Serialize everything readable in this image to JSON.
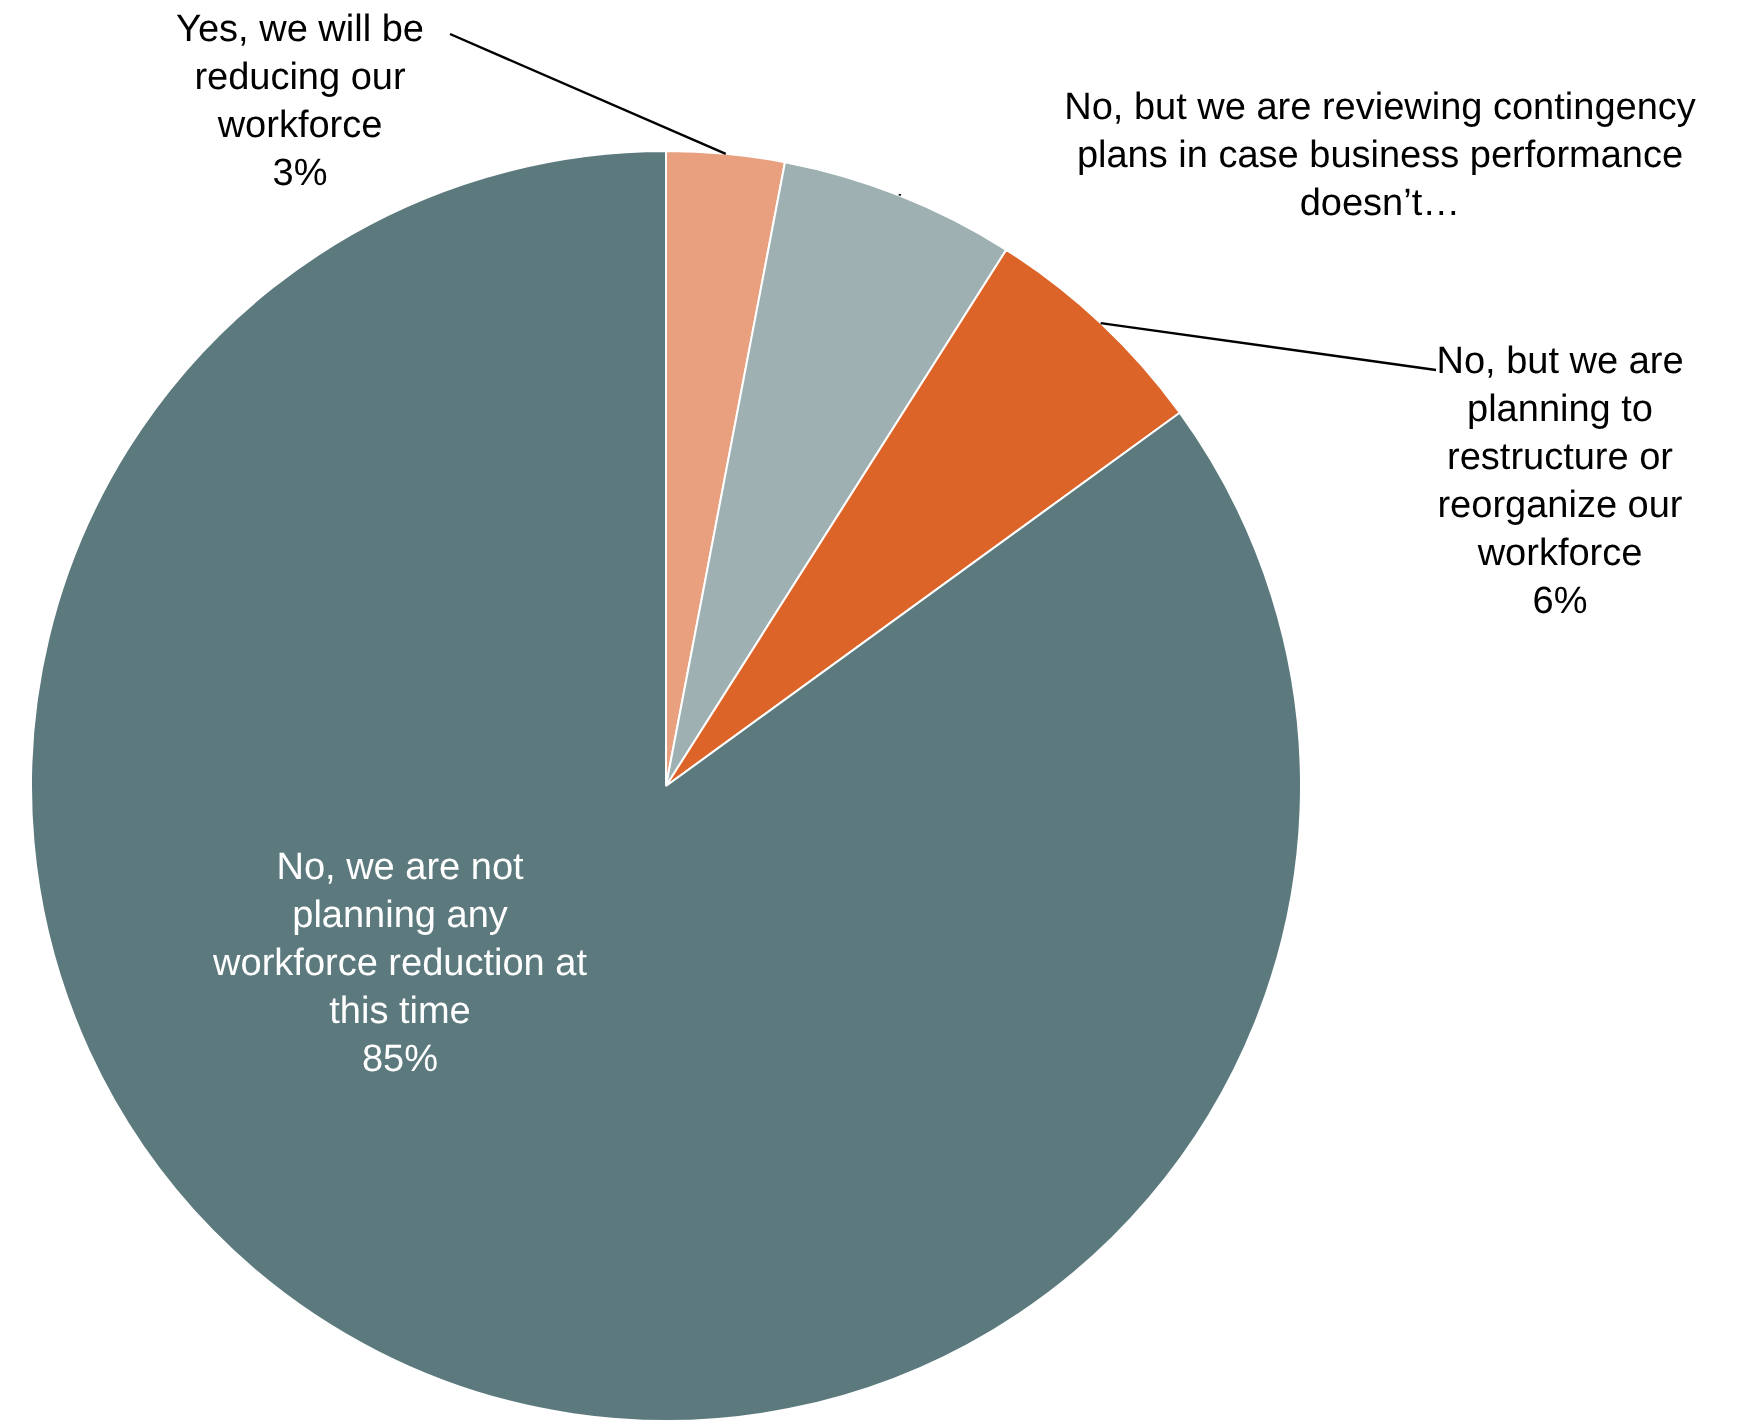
{
  "chart_data": {
    "type": "pie",
    "categories": [
      "Yes, we will be reducing our workforce",
      "No, but we are reviewing contingency plans in case business performance doesn’t…",
      "No, but we are planning to restructure or reorganize our workforce",
      "No, we are not planning any workforce reduction at this time"
    ],
    "values": [
      3,
      6,
      6,
      85
    ],
    "colors": [
      "#e8a07e",
      "#9eb0b2",
      "#dc6428",
      "#5c7a7e"
    ],
    "value_labels": [
      "3%",
      null,
      "6%",
      "85%"
    ],
    "legend": false
  }
}
